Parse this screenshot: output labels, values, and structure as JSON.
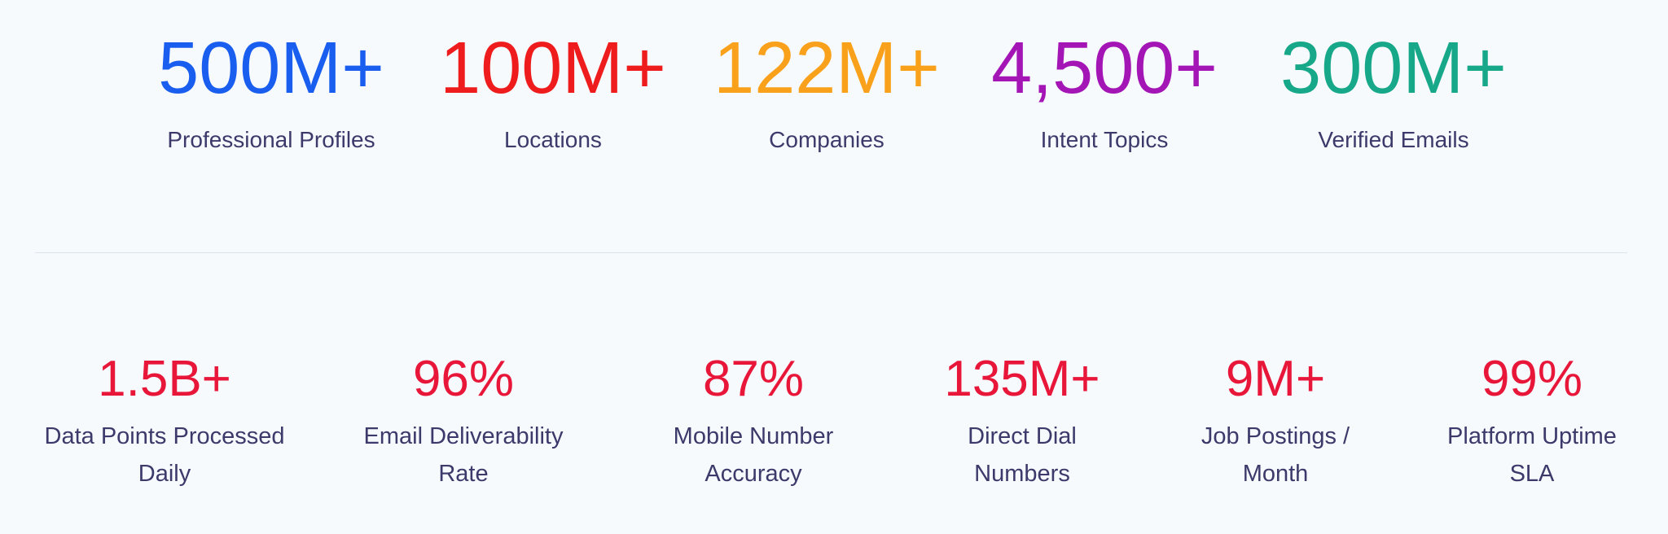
{
  "top_stats": [
    {
      "value": "500M+",
      "label": "Professional Profiles",
      "color": "#1a5ef0"
    },
    {
      "value": "100M+",
      "label": "Locations",
      "color": "#ee1c1c"
    },
    {
      "value": "122M+",
      "label": "Companies",
      "color": "#f9a11b"
    },
    {
      "value": "4,500+",
      "label": "Intent Topics",
      "color": "#a415b5"
    },
    {
      "value": "300M+",
      "label": "Verified Emails",
      "color": "#17a88a"
    }
  ],
  "bottom_stats": [
    {
      "value": "1.5B+",
      "label": "Data Points Processed Daily",
      "color": "#e8173a"
    },
    {
      "value": "96%",
      "label": "Email Deliverability Rate",
      "color": "#e8173a"
    },
    {
      "value": "87%",
      "label": "Mobile Number Accuracy",
      "color": "#e8173a"
    },
    {
      "value": "135M+",
      "label": "Direct Dial Numbers",
      "color": "#e8173a"
    },
    {
      "value": "9M+",
      "label": "Job Postings / Month",
      "color": "#e8173a"
    },
    {
      "value": "99%",
      "label": "Platform Uptime SLA",
      "color": "#e8173a"
    }
  ]
}
